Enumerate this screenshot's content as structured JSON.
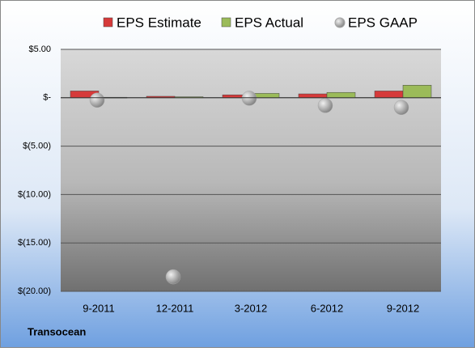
{
  "chart_data": {
    "type": "bar",
    "subtitle": "Transocean",
    "categories": [
      "9-2011",
      "12-2011",
      "3-2012",
      "6-2012",
      "9-2012"
    ],
    "series": [
      {
        "name": "EPS Estimate",
        "type": "bar",
        "color": "#d63a3a",
        "values": [
          0.7,
          0.15,
          0.3,
          0.4,
          0.7
        ]
      },
      {
        "name": "EPS Actual",
        "type": "bar",
        "color": "#9bbb59",
        "values": [
          0.05,
          0.1,
          0.45,
          0.55,
          1.3
        ]
      },
      {
        "name": "EPS GAAP",
        "type": "scatter",
        "color": "#a6a6a6",
        "values": [
          -0.25,
          -18.5,
          -0.05,
          -0.8,
          -1.0
        ]
      }
    ],
    "ylim": [
      -20,
      5
    ],
    "yticks": [
      {
        "value": -20,
        "label": "$(20.00)"
      },
      {
        "value": -15,
        "label": "$(15.00)"
      },
      {
        "value": -10,
        "label": "$(10.00)"
      },
      {
        "value": -5,
        "label": "$(5.00)"
      },
      {
        "value": 0,
        "label": "$-"
      },
      {
        "value": 5,
        "label": "$5.00"
      }
    ],
    "grid": true
  }
}
